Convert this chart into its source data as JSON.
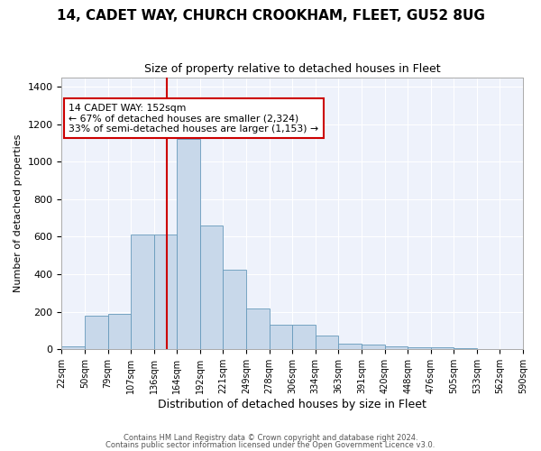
{
  "title1": "14, CADET WAY, CHURCH CROOKHAM, FLEET, GU52 8UG",
  "title2": "Size of property relative to detached houses in Fleet",
  "xlabel": "Distribution of detached houses by size in Fleet",
  "ylabel": "Number of detached properties",
  "categories": [
    "22sqm",
    "50sqm",
    "79sqm",
    "107sqm",
    "136sqm",
    "164sqm",
    "192sqm",
    "221sqm",
    "249sqm",
    "278sqm",
    "306sqm",
    "334sqm",
    "363sqm",
    "391sqm",
    "420sqm",
    "448sqm",
    "476sqm",
    "505sqm",
    "533sqm",
    "562sqm",
    "590sqm"
  ],
  "bar_heights": [
    15,
    180,
    190,
    610,
    610,
    1120,
    660,
    425,
    220,
    130,
    130,
    75,
    30,
    25,
    15,
    12,
    10,
    5,
    3,
    2
  ],
  "bar_color": "#c8d8ea",
  "bar_edge_color": "#6699bb",
  "annotation_box_text": "14 CADET WAY: 152sqm\n← 67% of detached houses are smaller (2,324)\n33% of semi-detached houses are larger (1,153) →",
  "vline_position": 5.5,
  "vline_color": "#cc0000",
  "footer1": "Contains HM Land Registry data © Crown copyright and database right 2024.",
  "footer2": "Contains public sector information licensed under the Open Government Licence v3.0.",
  "ylim": [
    0,
    1450
  ],
  "background_color": "#eef2fb",
  "grid_color": "#ffffff",
  "title1_fontsize": 11,
  "title2_fontsize": 9,
  "xlabel_fontsize": 9,
  "ylabel_fontsize": 8,
  "tick_fontsize": 7
}
